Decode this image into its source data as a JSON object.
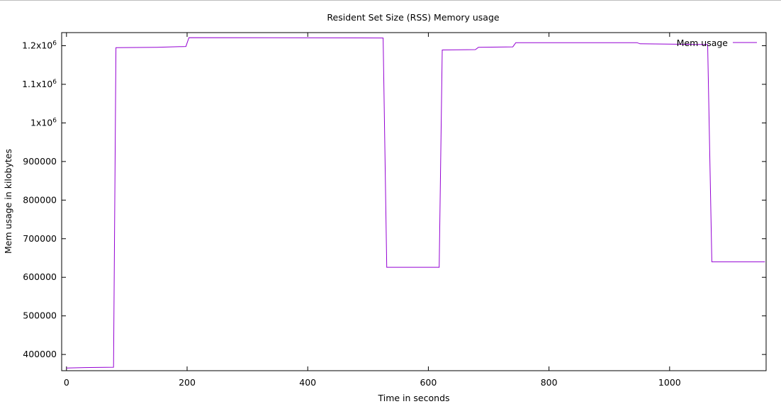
{
  "chart_data": {
    "type": "line",
    "title": "Resident Set Size (RSS) Memory usage",
    "xlabel": "Time in seconds",
    "ylabel": "Mem usage in kilobytes",
    "xlim": [
      -8,
      1160
    ],
    "ylim": [
      358000,
      1234000
    ],
    "x_ticks": [
      {
        "value": 0,
        "label": "0"
      },
      {
        "value": 200,
        "label": "200"
      },
      {
        "value": 400,
        "label": "400"
      },
      {
        "value": 600,
        "label": "600"
      },
      {
        "value": 800,
        "label": "800"
      },
      {
        "value": 1000,
        "label": "1000"
      }
    ],
    "y_ticks": [
      {
        "value": 400000,
        "label": "400000"
      },
      {
        "value": 500000,
        "label": "500000"
      },
      {
        "value": 600000,
        "label": "600000"
      },
      {
        "value": 700000,
        "label": "700000"
      },
      {
        "value": 800000,
        "label": "800000"
      },
      {
        "value": 900000,
        "label": "900000"
      },
      {
        "value": 1000000,
        "label": "1x10",
        "exp": "6"
      },
      {
        "value": 1100000,
        "label": "1.1x10",
        "exp": "6"
      },
      {
        "value": 1200000,
        "label": "1.2x10",
        "exp": "6"
      }
    ],
    "grid": false,
    "legend_position": "top-right",
    "series": [
      {
        "name": "Mem usage",
        "color": "#9400d3",
        "x": [
          0,
          30,
          78,
          82,
          150,
          198,
          203,
          525,
          531,
          618,
          623,
          678,
          683,
          740,
          745,
          946,
          951,
          1063,
          1070,
          1158
        ],
        "y": [
          365000,
          366000,
          367000,
          1195000,
          1196000,
          1198000,
          1221000,
          1220000,
          626000,
          626000,
          1189000,
          1190000,
          1196000,
          1197000,
          1208000,
          1208000,
          1205000,
          1203000,
          640000,
          640000
        ]
      }
    ]
  }
}
